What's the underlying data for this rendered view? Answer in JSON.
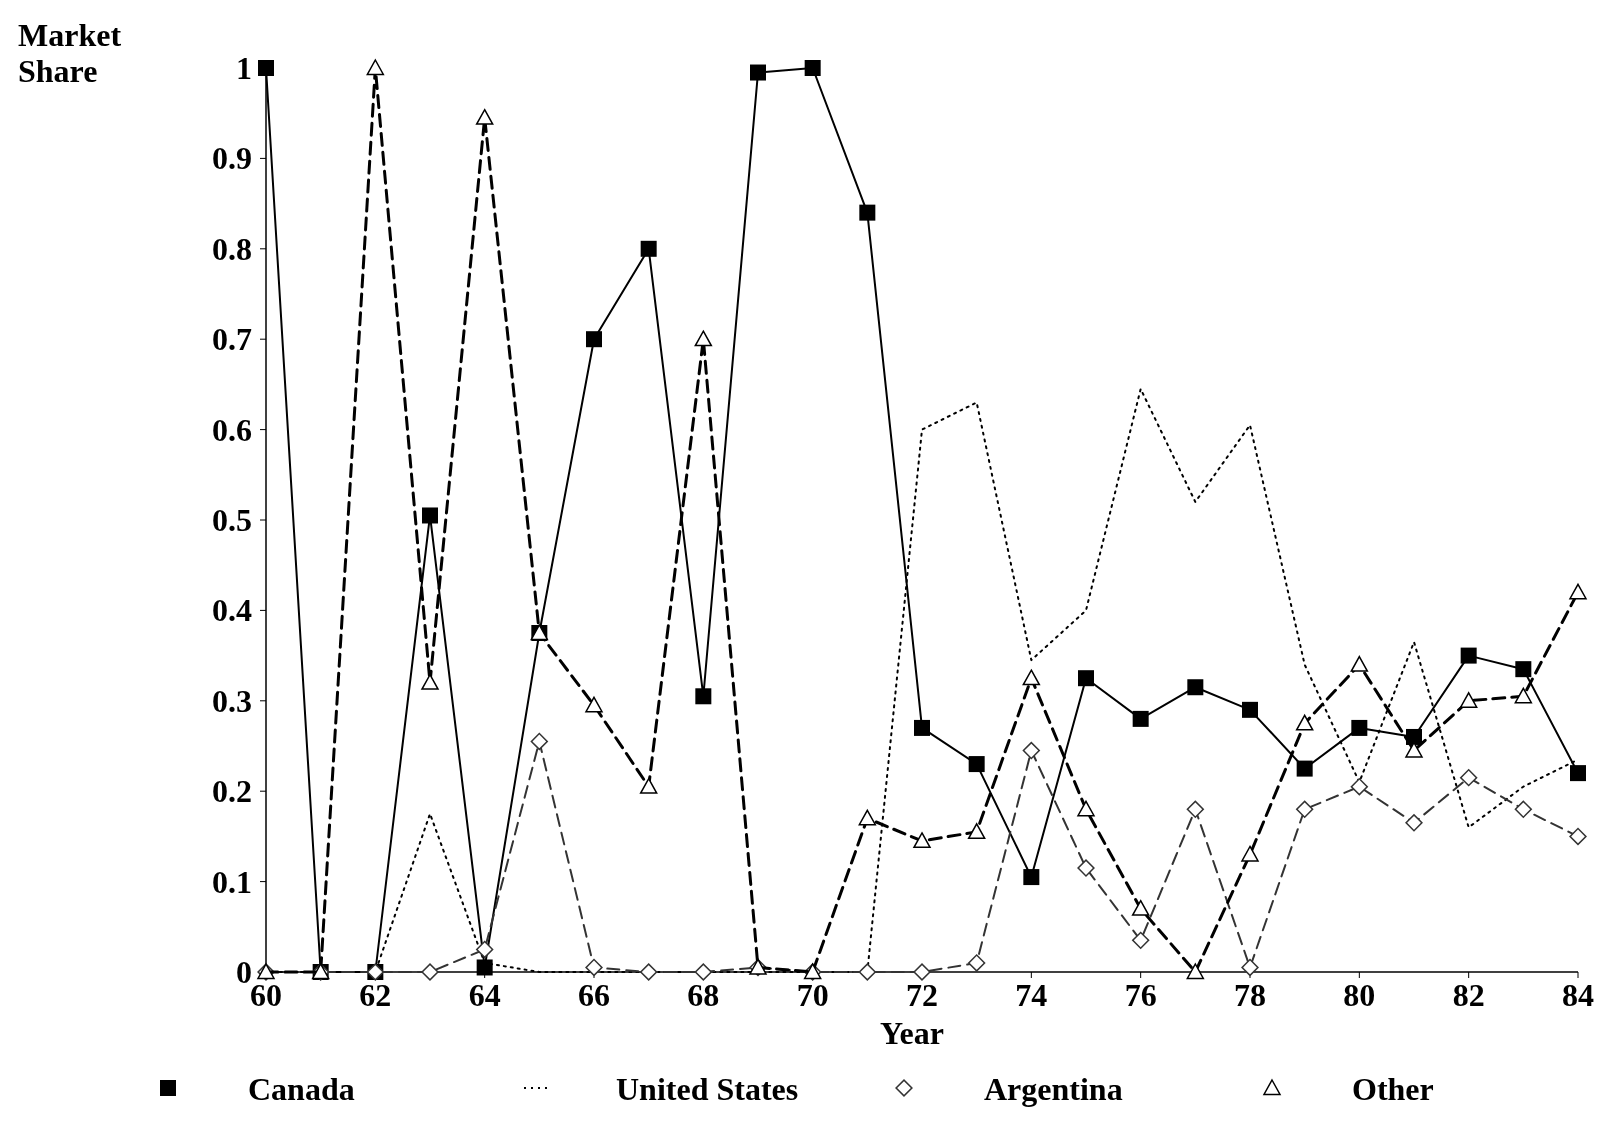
{
  "chart_data": {
    "type": "line",
    "xlabel": "Year",
    "ylabel": "Market Share",
    "x": [
      60,
      61,
      62,
      63,
      64,
      65,
      66,
      67,
      68,
      69,
      70,
      71,
      72,
      73,
      74,
      75,
      76,
      77,
      78,
      79,
      80,
      81,
      82,
      83,
      84
    ],
    "xlim": [
      60,
      84
    ],
    "xticks": [
      60,
      62,
      64,
      66,
      68,
      70,
      72,
      74,
      76,
      78,
      80,
      82,
      84
    ],
    "ylim": [
      0,
      1
    ],
    "yticks": [
      0,
      0.1,
      0.2,
      0.3,
      0.4,
      0.5,
      0.6,
      0.7,
      0.8,
      0.9,
      1
    ],
    "grid": false,
    "legend": "bottom",
    "series": [
      {
        "name": "Canada",
        "color": "#000000",
        "marker": "square",
        "line_style": "solid",
        "values": [
          1.0,
          0,
          0,
          0.505,
          0.005,
          0.375,
          0.7,
          0.8,
          0.305,
          0.995,
          1.0,
          0.84,
          0.27,
          0.23,
          0.105,
          0.325,
          0.28,
          0.315,
          0.29,
          0.225,
          0.27,
          0.26,
          0.35,
          0.335,
          0.22
        ]
      },
      {
        "name": "United States",
        "color": "#000000",
        "marker": "none",
        "line_style": "dotted",
        "values": [
          0,
          0,
          0,
          0.175,
          0.01,
          0,
          0,
          0,
          0,
          0,
          0,
          0,
          0.6,
          0.63,
          0.345,
          0.4,
          0.645,
          0.52,
          0.605,
          0.34,
          0.21,
          0.365,
          0.16,
          0.205,
          0.235
        ]
      },
      {
        "name": "Argentina",
        "color": "#333333",
        "marker": "diamond",
        "line_style": "dashed",
        "values": [
          0,
          0,
          0,
          0,
          0.025,
          0.255,
          0.005,
          0,
          0,
          0.005,
          0,
          0,
          0,
          0.01,
          0.245,
          0.115,
          0.035,
          0.18,
          0.005,
          0.18,
          0.205,
          0.165,
          0.215,
          0.18,
          0.15
        ]
      },
      {
        "name": "Other",
        "color": "#000000",
        "marker": "triangle",
        "line_style": "dashed",
        "values": [
          0,
          0,
          1.0,
          0.32,
          0.945,
          0.375,
          0.295,
          0.205,
          0.7,
          0.005,
          0,
          0.17,
          0.145,
          0.155,
          0.325,
          0.18,
          0.07,
          0,
          0.13,
          0.275,
          0.34,
          0.245,
          0.3,
          0.305,
          0.42
        ]
      }
    ]
  }
}
